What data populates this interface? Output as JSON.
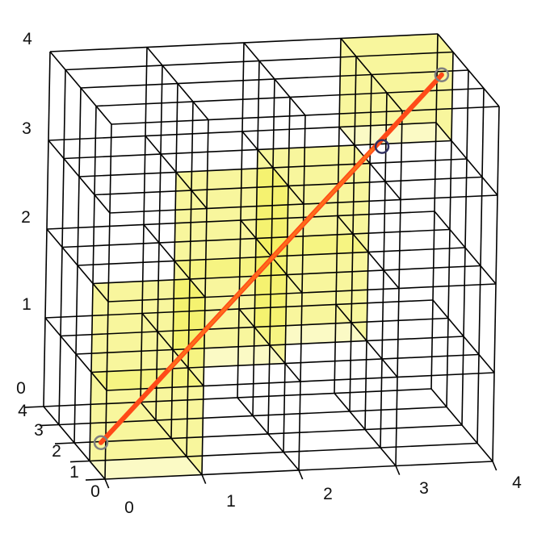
{
  "colors": {
    "grid": "#000000",
    "voxel_fill": "#f2f04a",
    "ray": "#ff4a18",
    "ray_inside": "#ff8a1c",
    "marker": "#7f7f7f",
    "marker_dark": "#303060",
    "background": "#ffffff"
  },
  "grid": {
    "nx": 4,
    "ny": 4,
    "nz": 4
  },
  "axes": {
    "x_ticks": [
      "0",
      "1",
      "2",
      "3",
      "4"
    ],
    "y_ticks": [
      "0",
      "1",
      "2",
      "3",
      "4"
    ],
    "z_ticks": [
      "0",
      "1",
      "2",
      "3",
      "4"
    ]
  },
  "ray": {
    "start": [
      0,
      0.3,
      0.35
    ],
    "end": [
      4,
      3.7,
      3.6
    ]
  },
  "traversed_voxels": [
    [
      0,
      0,
      0
    ],
    [
      0,
      0,
      1
    ],
    [
      1,
      1,
      1
    ],
    [
      1,
      1,
      2
    ],
    [
      2,
      2,
      2
    ],
    [
      2,
      2,
      1
    ],
    [
      3,
      3,
      3
    ]
  ],
  "markers": [
    {
      "point": [
        0,
        0.3,
        0.35
      ],
      "style": "light"
    },
    {
      "point": [
        3.3,
        3.1,
        2.95
      ],
      "style": "dark"
    },
    {
      "point": [
        4,
        3.7,
        3.6
      ],
      "style": "light"
    }
  ]
}
